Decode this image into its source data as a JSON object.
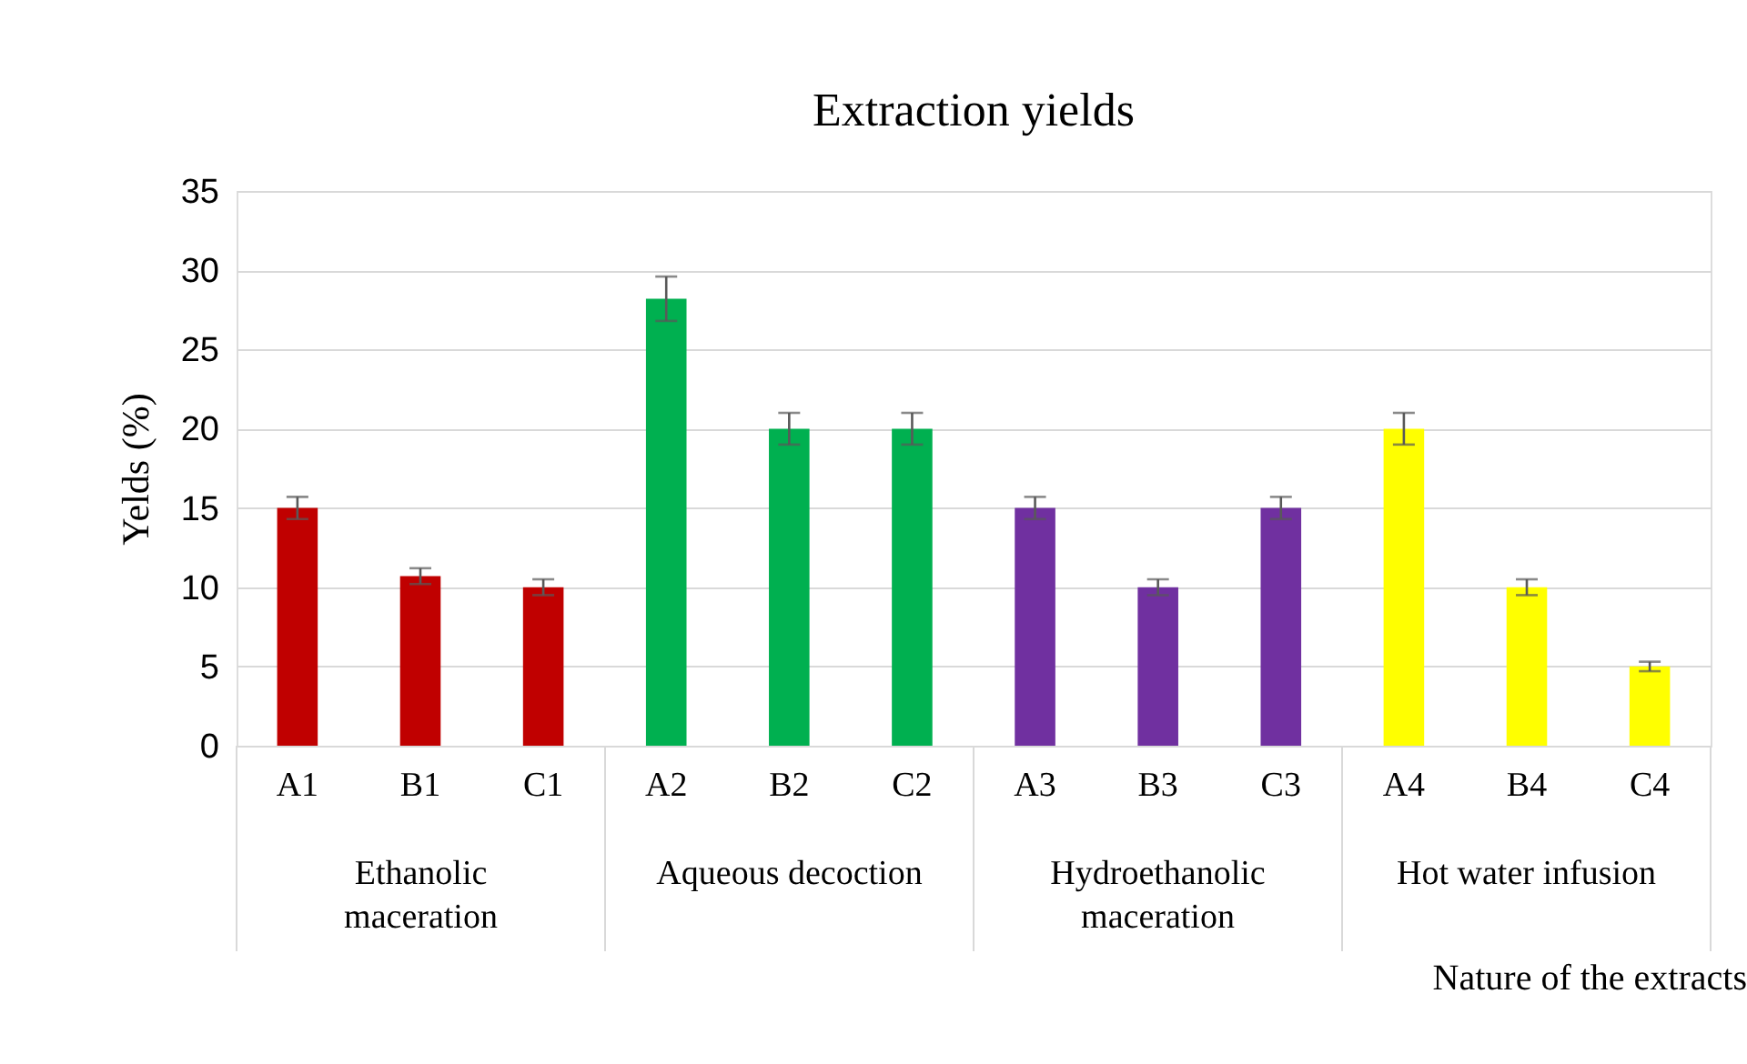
{
  "chart_data": {
    "type": "bar",
    "title": "Extraction yields",
    "ylabel": "Yelds (%)",
    "xlabel": "Nature of the extracts",
    "categories": [
      "A1",
      "B1",
      "C1",
      "A2",
      "B2",
      "C2",
      "A3",
      "B3",
      "C3",
      "A4",
      "B4",
      "C4"
    ],
    "values": [
      15.0,
      10.7,
      10.0,
      28.2,
      20.0,
      20.0,
      15.0,
      10.0,
      15.0,
      20.0,
      10.0,
      5.0
    ],
    "errors": [
      0.7,
      0.5,
      0.5,
      1.4,
      1.0,
      1.0,
      0.7,
      0.5,
      0.7,
      1.0,
      0.5,
      0.3
    ],
    "colors": [
      "#c00000",
      "#c00000",
      "#c00000",
      "#00b050",
      "#00b050",
      "#00b050",
      "#7030a0",
      "#7030a0",
      "#7030a0",
      "#ffff00",
      "#ffff00",
      "#ffff00"
    ],
    "annotations": [
      "Ethanolic maceration",
      "Aqueous decoction",
      "Hydroethanolic maceration",
      "Hot water infusion"
    ],
    "ylim": [
      0,
      35
    ],
    "yticks": [
      0,
      5,
      10,
      15,
      20,
      25,
      30,
      35
    ],
    "grid": "y"
  }
}
